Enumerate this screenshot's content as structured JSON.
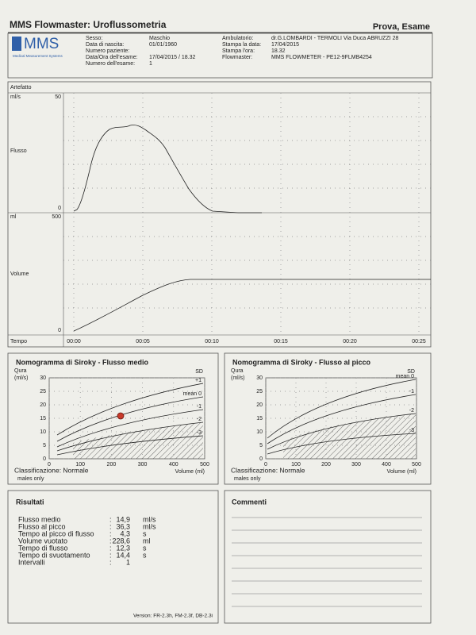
{
  "header": {
    "title": "MMS Flowmaster: Uroflussometria",
    "patient": "Prova, Esame"
  },
  "logo": {
    "name": "MMS",
    "subtitle": "Medical Measurement Systems"
  },
  "info": {
    "left": [
      {
        "label": "Sesso:",
        "value": "Maschio"
      },
      {
        "label": "Data di nascita:",
        "value": "01/01/1960"
      },
      {
        "label": "Numero paziente:"
      },
      {
        "label": "Data/Ora dell'esame:",
        "value": "17/04/2015 / 18.32"
      },
      {
        "label": "Numero dell'esame:",
        "value": "1"
      }
    ],
    "right": [
      {
        "label": "Ambulatorio:",
        "value": "dr.G.LOMBARDI - TERMOLI Via Duca ABRUZZI 28"
      },
      {
        "label": "Stampa la data:",
        "value": "17/04/2015"
      },
      {
        "label": "Stampa l'ora:",
        "value": "18.32"
      },
      {
        "label": "Flowmaster:",
        "value": "MMS FLOWMETER - PE12-9FLMB4254"
      }
    ]
  },
  "traces": {
    "artefact": "Artefatto",
    "flow": {
      "unit": "ml/s",
      "max": "50",
      "label": "Flusso",
      "min": "0"
    },
    "volume": {
      "unit": "ml",
      "max": "500",
      "label": "Volume",
      "min": "0"
    },
    "time_label": "Tempo",
    "time_ticks": [
      "00:00",
      "00:05",
      "00:10",
      "00:15",
      "00:20",
      "00:25"
    ]
  },
  "nomograms": [
    {
      "title": "Nomogramma di Siroky - Flusso medio",
      "y_label": "Qura",
      "y_unit": "(ml/s)",
      "sd": "SD",
      "yticks": [
        "0",
        "5",
        "10",
        "15",
        "20",
        "25",
        "30"
      ],
      "xticks": [
        "0",
        "100",
        "200",
        "300",
        "400",
        "500"
      ],
      "curve_labels": [
        "+1",
        "mean 0",
        "-1",
        "-2",
        "-3"
      ],
      "x_label": "Volume (ml)",
      "classification": "Classificazione: Normale",
      "note": "males only"
    },
    {
      "title": "Nomogramma di Siroky - Flusso al picco",
      "y_label": "Qura",
      "y_unit": "(ml/s)",
      "sd": "SD",
      "yticks": [
        "0",
        "5",
        "10",
        "15",
        "20",
        "25",
        "30"
      ],
      "xticks": [
        "0",
        "100",
        "200",
        "300",
        "400",
        "500"
      ],
      "curve_labels": [
        "mean 0",
        "-1",
        "-2",
        "-3"
      ],
      "x_label": "Volume (ml)",
      "classification": "Classificazione: Normale",
      "note": "males only"
    }
  ],
  "results": {
    "title": "Risultati",
    "rows": [
      {
        "label": "Flusso medio",
        "sep": ":",
        "value": "14,9",
        "unit": "ml/s"
      },
      {
        "label": "Flusso al picco",
        "sep": ":",
        "value": "36,3",
        "unit": "ml/s"
      },
      {
        "label": "Tempo al picco di flusso",
        "sep": ":",
        "value": "4,3",
        "unit": "s"
      },
      {
        "label": "Volume vuotato",
        "sep": ":",
        "value": "228,6",
        "unit": "ml"
      },
      {
        "label": "Tempo di flusso",
        "sep": ":",
        "value": "12,3",
        "unit": "s"
      },
      {
        "label": "Tempo di svuotamento",
        "sep": ":",
        "value": "14,4",
        "unit": "s"
      },
      {
        "label": "Intervalli",
        "sep": ":",
        "value": "1"
      }
    ],
    "version": "Version: FR-2.3h, FM-2.3f, DB-2.3i"
  },
  "comments": {
    "title": "Commenti"
  }
}
